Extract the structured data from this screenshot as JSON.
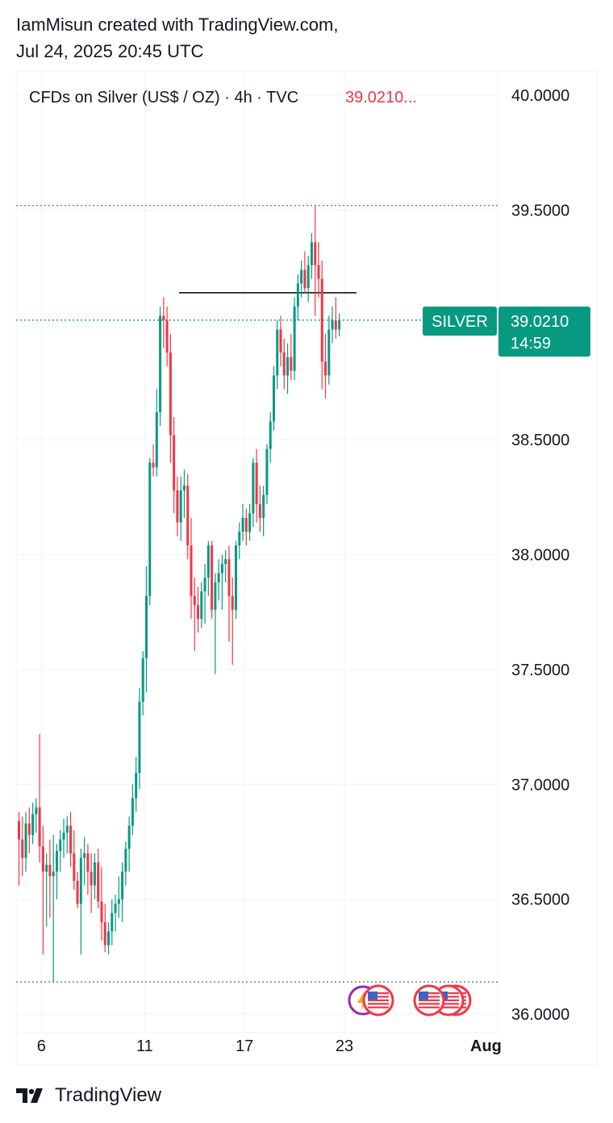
{
  "header": {
    "line1": "IamMisun created with TradingView.com,",
    "line2": "Jul 24, 2025 20:45 UTC"
  },
  "legend": {
    "symbol": "CFDs on Silver (US$ / OZ) · 4h · TVC",
    "price": "39.0210..."
  },
  "price_label": {
    "ticker": "SILVER",
    "value": "39.0210",
    "countdown": "14:59"
  },
  "footer": {
    "brand": "TradingView"
  },
  "colors": {
    "up": "#089981",
    "down": "#f23645",
    "price_line": "#089981",
    "grid": "#f0f3fa",
    "text": "#131722",
    "legend_price": "#f23645",
    "event_red": "#f23645",
    "event_purple": "#9c27b0"
  },
  "events": [
    "flag-us",
    "lightning-flag-us",
    "flag-us",
    "flag-us",
    "flag-us"
  ],
  "chart_data": {
    "type": "candlestick",
    "timeframe": "4h",
    "ylim": [
      35.96,
      40.08
    ],
    "yticks": [
      "40.0000",
      "39.5000",
      "38.5000",
      "38.0000",
      "37.5000",
      "37.0000",
      "36.5000",
      "36.0000"
    ],
    "xticks": [
      {
        "label": "6",
        "index": 6.5
      },
      {
        "label": "11",
        "index": 36.5
      },
      {
        "label": "17",
        "index": 65.5
      },
      {
        "label": "23",
        "index": 94.5
      },
      {
        "label": "Aug",
        "index": 142
      }
    ],
    "last_price": 39.021,
    "levels": {
      "high_dotted": 39.52,
      "low_dotted": 36.14,
      "horizontal_line": {
        "value": 39.14,
        "from_index": 46.5,
        "to_index": 98
      }
    },
    "candles": [
      [
        36.84,
        36.88,
        36.56,
        36.76
      ],
      [
        36.76,
        36.86,
        36.6,
        36.68
      ],
      [
        36.68,
        36.88,
        36.62,
        36.83
      ],
      [
        36.83,
        36.9,
        36.7,
        36.78
      ],
      [
        36.78,
        36.92,
        36.74,
        36.87
      ],
      [
        36.87,
        36.94,
        36.79,
        36.9
      ],
      [
        36.9,
        37.22,
        36.66,
        36.73
      ],
      [
        36.73,
        36.82,
        36.26,
        36.62
      ],
      [
        36.62,
        36.7,
        36.38,
        36.65
      ],
      [
        36.65,
        36.76,
        36.42,
        36.6
      ],
      [
        36.6,
        36.78,
        36.14,
        36.62
      ],
      [
        36.62,
        36.74,
        36.5,
        36.71
      ],
      [
        36.71,
        36.8,
        36.62,
        36.76
      ],
      [
        36.76,
        36.85,
        36.68,
        36.79
      ],
      [
        36.79,
        36.86,
        36.7,
        36.82
      ],
      [
        36.82,
        36.88,
        36.64,
        36.7
      ],
      [
        36.7,
        36.8,
        36.54,
        36.58
      ],
      [
        36.58,
        36.62,
        36.46,
        36.48
      ],
      [
        36.48,
        36.72,
        36.26,
        36.68
      ],
      [
        36.68,
        36.77,
        36.56,
        36.7
      ],
      [
        36.7,
        36.74,
        36.52,
        36.62
      ],
      [
        36.62,
        36.7,
        36.44,
        36.56
      ],
      [
        36.56,
        36.7,
        36.5,
        36.66
      ],
      [
        36.66,
        36.72,
        36.46,
        36.49
      ],
      [
        36.49,
        36.64,
        36.32,
        36.4
      ],
      [
        36.4,
        36.48,
        36.27,
        36.3
      ],
      [
        36.3,
        36.4,
        36.26,
        36.36
      ],
      [
        36.36,
        36.5,
        36.3,
        36.44
      ],
      [
        36.44,
        36.52,
        36.36,
        36.48
      ],
      [
        36.48,
        36.6,
        36.42,
        36.5
      ],
      [
        36.5,
        36.66,
        36.4,
        36.62
      ],
      [
        36.62,
        36.75,
        36.56,
        36.72
      ],
      [
        36.72,
        36.86,
        36.62,
        36.82
      ],
      [
        36.82,
        37.0,
        36.78,
        36.94
      ],
      [
        36.94,
        37.12,
        36.88,
        37.05
      ],
      [
        37.05,
        37.42,
        36.98,
        37.36
      ],
      [
        37.36,
        37.58,
        37.3,
        37.55
      ],
      [
        37.55,
        37.95,
        37.4,
        37.82
      ],
      [
        37.82,
        38.42,
        37.78,
        38.4
      ],
      [
        38.4,
        38.48,
        38.34,
        38.38
      ],
      [
        38.38,
        38.72,
        38.34,
        38.62
      ],
      [
        38.62,
        39.08,
        38.56,
        39.04
      ],
      [
        39.04,
        39.12,
        38.9,
        39.02
      ],
      [
        39.02,
        39.08,
        38.82,
        38.88
      ],
      [
        38.88,
        38.96,
        38.4,
        38.52
      ],
      [
        38.52,
        38.6,
        38.18,
        38.28
      ],
      [
        38.28,
        38.34,
        38.08,
        38.14
      ],
      [
        38.14,
        38.34,
        38.06,
        38.28
      ],
      [
        38.28,
        38.37,
        38.16,
        38.3
      ],
      [
        38.3,
        38.35,
        37.98,
        38.04
      ],
      [
        38.04,
        38.16,
        37.72,
        37.82
      ],
      [
        37.82,
        37.9,
        37.58,
        37.78
      ],
      [
        37.78,
        37.86,
        37.66,
        37.72
      ],
      [
        37.72,
        37.88,
        37.68,
        37.84
      ],
      [
        37.84,
        37.96,
        37.7,
        37.9
      ],
      [
        37.9,
        38.06,
        37.82,
        38.04
      ],
      [
        38.04,
        38.06,
        37.72,
        37.76
      ],
      [
        37.76,
        37.92,
        37.48,
        37.88
      ],
      [
        37.88,
        37.98,
        37.8,
        37.92
      ],
      [
        37.92,
        38.0,
        37.76,
        37.96
      ],
      [
        37.96,
        38.02,
        37.88,
        37.98
      ],
      [
        37.98,
        38.04,
        37.62,
        37.82
      ],
      [
        37.82,
        37.9,
        37.52,
        37.76
      ],
      [
        37.76,
        38.06,
        37.72,
        38.04
      ],
      [
        38.04,
        38.14,
        37.98,
        38.1
      ],
      [
        38.1,
        38.22,
        38.06,
        38.16
      ],
      [
        38.16,
        38.2,
        38.04,
        38.1
      ],
      [
        38.1,
        38.22,
        38.06,
        38.18
      ],
      [
        38.18,
        38.42,
        38.12,
        38.4
      ],
      [
        38.4,
        38.46,
        38.14,
        38.22
      ],
      [
        38.22,
        38.3,
        38.1,
        38.16
      ],
      [
        38.16,
        38.3,
        38.08,
        38.26
      ],
      [
        38.26,
        38.48,
        38.22,
        38.46
      ],
      [
        38.46,
        38.62,
        38.4,
        38.58
      ],
      [
        38.58,
        38.82,
        38.54,
        38.78
      ],
      [
        38.78,
        39.02,
        38.72,
        38.98
      ],
      [
        38.98,
        39.04,
        38.82,
        38.88
      ],
      [
        38.88,
        38.94,
        38.72,
        38.78
      ],
      [
        38.78,
        38.92,
        38.7,
        38.86
      ],
      [
        38.86,
        38.96,
        38.76,
        38.8
      ],
      [
        38.8,
        39.12,
        38.76,
        39.08
      ],
      [
        39.08,
        39.22,
        39.02,
        39.18
      ],
      [
        39.18,
        39.28,
        39.12,
        39.24
      ],
      [
        39.24,
        39.32,
        39.14,
        39.16
      ],
      [
        39.16,
        39.3,
        39.1,
        39.26
      ],
      [
        39.26,
        39.4,
        39.2,
        39.36
      ],
      [
        39.36,
        39.52,
        39.04,
        39.26
      ],
      [
        39.26,
        39.36,
        39.12,
        39.2
      ],
      [
        39.2,
        39.28,
        38.72,
        38.84
      ],
      [
        38.84,
        38.96,
        38.68,
        38.78
      ],
      [
        38.78,
        39.04,
        38.74,
        38.98
      ],
      [
        38.98,
        39.08,
        38.92,
        39.02
      ],
      [
        39.02,
        39.12,
        38.94,
        38.98
      ],
      [
        38.98,
        39.05,
        38.95,
        39.02
      ]
    ]
  }
}
